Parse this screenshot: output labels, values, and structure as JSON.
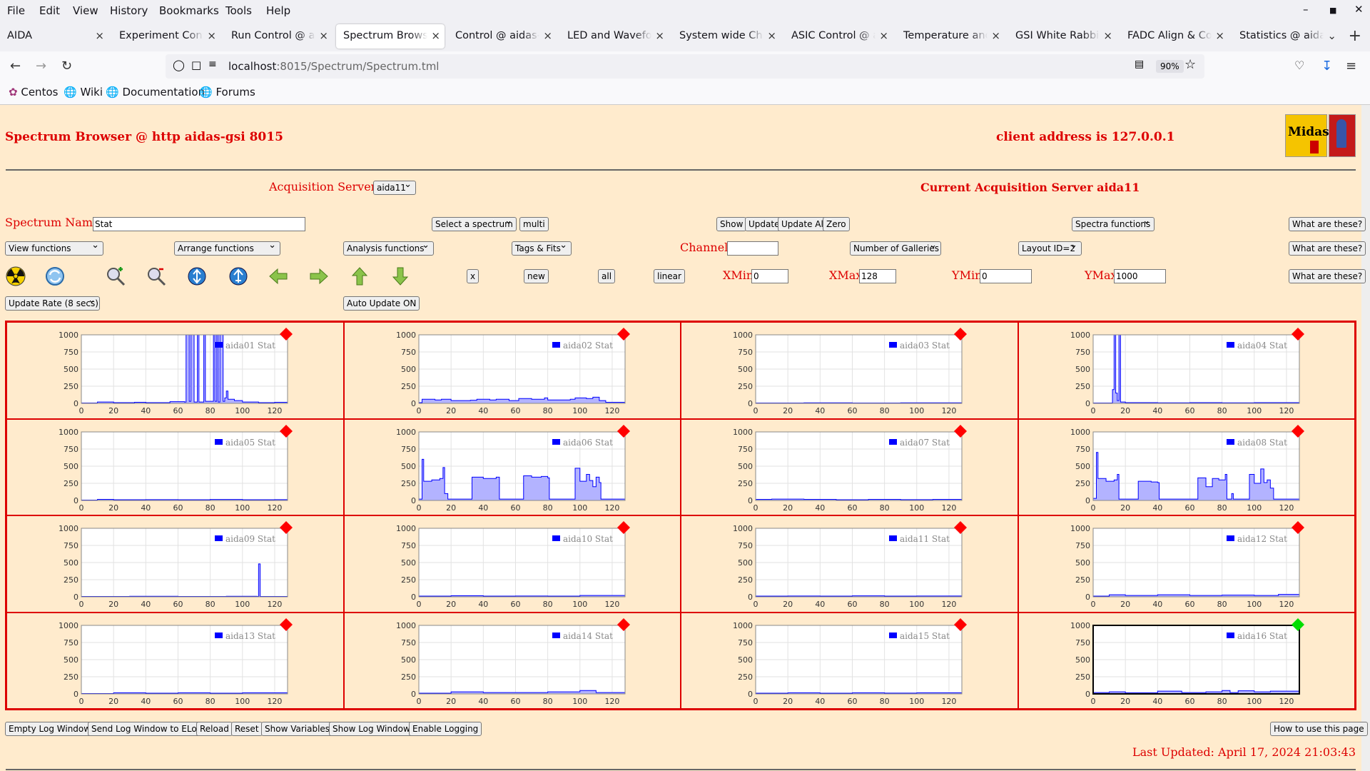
{
  "menu": [
    "File",
    "Edit",
    "View",
    "History",
    "Bookmarks",
    "Tools",
    "Help"
  ],
  "tabs": [
    {
      "label": "AIDA"
    },
    {
      "label": "Experiment Control"
    },
    {
      "label": "Run Control @ aidas"
    },
    {
      "label": "Spectrum Browser"
    },
    {
      "label": "Control @ aidas-gsi"
    },
    {
      "label": "LED and Waveform"
    },
    {
      "label": "System wide Checks"
    },
    {
      "label": "ASIC Control @ aidas"
    },
    {
      "label": "Temperature and status"
    },
    {
      "label": "GSI White Rabbit Timestamp"
    },
    {
      "label": "FADC Align & Control"
    },
    {
      "label": "Statistics @ aidas-gsi"
    }
  ],
  "url": {
    "host": "localhost",
    "rest": ":8015/Spectrum/Spectrum.tml"
  },
  "zoom": "90%",
  "bookmarks": [
    "Centos",
    "Wiki",
    "Documentation",
    "Forums"
  ],
  "page": {
    "title": "Spectrum Browser @ http aidas-gsi 8015",
    "client": "client address is 127.0.0.1",
    "logo_text": "Midas",
    "acq_label": "Acquisition Servers",
    "acq_value": "aida11",
    "current_server": "Current Acquisition Server aida11",
    "spectrum_name_label": "Spectrum Name:",
    "spectrum_name_value": "Stat",
    "select_spectrum": "Select a spectrum",
    "multi": "multi",
    "show": "Show",
    "update": "Update",
    "update_all": "Update All",
    "zero": "Zero",
    "spectra_functions": "Spectra functions",
    "what": "What are these?",
    "view_functions": "View functions",
    "arrange_functions": "Arrange functions",
    "analysis_functions": "Analysis functions",
    "tags_fits": "Tags & Fits",
    "channel_label": "Channel:",
    "galleries": "Number of Galleries",
    "layout": "Layout ID=2",
    "x_btn": "x",
    "new_btn": "new",
    "all_btn": "all",
    "linear_btn": "linear",
    "xmin_label": "XMin",
    "xmin_value": "0",
    "xmax_label": "XMax",
    "xmax_value": "128",
    "ymin_label": "YMin",
    "ymin_value": "0",
    "ymax_label": "YMax",
    "ymax_value": "1000",
    "update_rate": "Update Rate (8 secs)",
    "auto_update": "Auto Update ON",
    "bottom_buttons": [
      "Empty Log Window",
      "Send Log Window to ELog",
      "Reload",
      "Reset",
      "Show Variables",
      "Show Log Window",
      "Enable Logging"
    ],
    "how_to": "How to use this page",
    "last_updated": "Last Updated: April 17, 2024 21:03:43"
  },
  "colors": {
    "accent": "#dd0000",
    "bg": "#ffebcd",
    "line": "#0000ff",
    "fill": "#b3b3ff",
    "alarm": "#ff0000",
    "ok": "#00dd00"
  },
  "icons": [
    "radiation-icon",
    "refresh-icon",
    "zoom-in-icon",
    "zoom-out-icon",
    "arrow-up-down-blue-icon",
    "arrow-down-up-blue-icon",
    "arrow-left-icon",
    "arrow-right-icon",
    "arrow-up-icon",
    "arrow-down-icon"
  ],
  "chart_data": {
    "type": "line",
    "xlim": [
      0,
      128
    ],
    "ylim": [
      0,
      1000
    ],
    "xticks": [
      0,
      20,
      40,
      60,
      80,
      100,
      120
    ],
    "yticks": [
      0,
      250,
      500,
      750,
      1000
    ],
    "grid": true,
    "legend": "top-right",
    "panels": [
      {
        "name": "aida01 Stat",
        "status": "red",
        "points": [
          [
            0,
            5
          ],
          [
            10,
            20
          ],
          [
            20,
            10
          ],
          [
            33,
            15
          ],
          [
            40,
            10
          ],
          [
            55,
            25
          ],
          [
            64,
            20
          ],
          [
            65,
            1000
          ],
          [
            66,
            1000
          ],
          [
            67,
            30
          ],
          [
            68,
            1000
          ],
          [
            69,
            1000
          ],
          [
            70,
            20
          ],
          [
            72,
            1000
          ],
          [
            73,
            20
          ],
          [
            76,
            1000
          ],
          [
            77,
            30
          ],
          [
            82,
            1000
          ],
          [
            83,
            30
          ],
          [
            84,
            1000
          ],
          [
            85,
            20
          ],
          [
            86,
            1000
          ],
          [
            87,
            1000
          ],
          [
            88,
            30
          ],
          [
            89,
            80
          ],
          [
            90,
            180
          ],
          [
            91,
            60
          ],
          [
            95,
            40
          ],
          [
            100,
            20
          ],
          [
            110,
            10
          ],
          [
            120,
            15
          ],
          [
            128,
            5
          ]
        ]
      },
      {
        "name": "aida02 Stat",
        "status": "red",
        "points": [
          [
            0,
            10
          ],
          [
            2,
            60
          ],
          [
            10,
            50
          ],
          [
            14,
            60
          ],
          [
            20,
            40
          ],
          [
            32,
            45
          ],
          [
            36,
            60
          ],
          [
            44,
            50
          ],
          [
            48,
            60
          ],
          [
            56,
            40
          ],
          [
            62,
            70
          ],
          [
            70,
            60
          ],
          [
            78,
            80
          ],
          [
            80,
            50
          ],
          [
            94,
            60
          ],
          [
            97,
            80
          ],
          [
            104,
            70
          ],
          [
            108,
            90
          ],
          [
            112,
            40
          ],
          [
            116,
            15
          ],
          [
            128,
            5
          ]
        ]
      },
      {
        "name": "aida03 Stat",
        "status": "red",
        "points": [
          [
            0,
            5
          ],
          [
            30,
            8
          ],
          [
            60,
            5
          ],
          [
            90,
            8
          ],
          [
            128,
            5
          ]
        ]
      },
      {
        "name": "aida04 Stat",
        "status": "red",
        "points": [
          [
            0,
            5
          ],
          [
            12,
            200
          ],
          [
            13,
            1000
          ],
          [
            14,
            150
          ],
          [
            15,
            40
          ],
          [
            16,
            1000
          ],
          [
            17,
            20
          ],
          [
            20,
            10
          ],
          [
            40,
            8
          ],
          [
            60,
            10
          ],
          [
            80,
            8
          ],
          [
            100,
            10
          ],
          [
            128,
            5
          ]
        ]
      },
      {
        "name": "aida05 Stat",
        "status": "red",
        "points": [
          [
            0,
            5
          ],
          [
            10,
            15
          ],
          [
            20,
            10
          ],
          [
            40,
            12
          ],
          [
            60,
            10
          ],
          [
            80,
            14
          ],
          [
            100,
            10
          ],
          [
            120,
            12
          ],
          [
            128,
            5
          ]
        ]
      },
      {
        "name": "aida06 Stat",
        "status": "red",
        "points": [
          [
            0,
            20
          ],
          [
            2,
            600
          ],
          [
            3,
            280
          ],
          [
            8,
            300
          ],
          [
            13,
            320
          ],
          [
            15,
            480
          ],
          [
            16,
            100
          ],
          [
            18,
            20
          ],
          [
            32,
            20
          ],
          [
            33,
            340
          ],
          [
            40,
            320
          ],
          [
            48,
            340
          ],
          [
            50,
            20
          ],
          [
            64,
            20
          ],
          [
            65,
            360
          ],
          [
            70,
            340
          ],
          [
            76,
            350
          ],
          [
            80,
            330
          ],
          [
            81,
            20
          ],
          [
            96,
            20
          ],
          [
            97,
            470
          ],
          [
            100,
            280
          ],
          [
            104,
            380
          ],
          [
            106,
            290
          ],
          [
            108,
            200
          ],
          [
            110,
            340
          ],
          [
            112,
            260
          ],
          [
            113,
            20
          ],
          [
            128,
            10
          ]
        ]
      },
      {
        "name": "aida07 Stat",
        "status": "red",
        "points": [
          [
            0,
            15
          ],
          [
            10,
            20
          ],
          [
            30,
            15
          ],
          [
            50,
            10
          ],
          [
            70,
            15
          ],
          [
            90,
            12
          ],
          [
            110,
            15
          ],
          [
            128,
            5
          ]
        ]
      },
      {
        "name": "aida08 Stat",
        "status": "red",
        "points": [
          [
            0,
            30
          ],
          [
            2,
            700
          ],
          [
            3,
            320
          ],
          [
            8,
            280
          ],
          [
            13,
            300
          ],
          [
            15,
            380
          ],
          [
            16,
            20
          ],
          [
            27,
            20
          ],
          [
            28,
            280
          ],
          [
            36,
            270
          ],
          [
            40,
            260
          ],
          [
            41,
            20
          ],
          [
            64,
            20
          ],
          [
            65,
            330
          ],
          [
            70,
            200
          ],
          [
            74,
            320
          ],
          [
            78,
            300
          ],
          [
            82,
            380
          ],
          [
            83,
            20
          ],
          [
            86,
            100
          ],
          [
            87,
            20
          ],
          [
            96,
            20
          ],
          [
            97,
            380
          ],
          [
            100,
            250
          ],
          [
            104,
            460
          ],
          [
            106,
            260
          ],
          [
            108,
            300
          ],
          [
            110,
            180
          ],
          [
            112,
            20
          ],
          [
            128,
            10
          ]
        ]
      },
      {
        "name": "aida09 Stat",
        "status": "red",
        "points": [
          [
            0,
            5
          ],
          [
            30,
            8
          ],
          [
            60,
            5
          ],
          [
            90,
            8
          ],
          [
            109,
            5
          ],
          [
            110,
            480
          ],
          [
            111,
            5
          ],
          [
            128,
            5
          ]
        ]
      },
      {
        "name": "aida10 Stat",
        "status": "red",
        "points": [
          [
            0,
            10
          ],
          [
            20,
            15
          ],
          [
            40,
            10
          ],
          [
            60,
            12
          ],
          [
            80,
            10
          ],
          [
            100,
            20
          ],
          [
            128,
            8
          ]
        ]
      },
      {
        "name": "aida11 Stat",
        "status": "red",
        "points": [
          [
            0,
            10
          ],
          [
            20,
            12
          ],
          [
            40,
            10
          ],
          [
            60,
            14
          ],
          [
            80,
            10
          ],
          [
            100,
            12
          ],
          [
            128,
            8
          ]
        ]
      },
      {
        "name": "aida12 Stat",
        "status": "red",
        "points": [
          [
            0,
            10
          ],
          [
            10,
            30
          ],
          [
            20,
            20
          ],
          [
            40,
            30
          ],
          [
            60,
            20
          ],
          [
            80,
            25
          ],
          [
            100,
            20
          ],
          [
            115,
            35
          ],
          [
            128,
            10
          ]
        ]
      },
      {
        "name": "aida13 Stat",
        "status": "red",
        "points": [
          [
            0,
            5
          ],
          [
            20,
            15
          ],
          [
            40,
            10
          ],
          [
            60,
            15
          ],
          [
            80,
            10
          ],
          [
            100,
            15
          ],
          [
            128,
            5
          ]
        ]
      },
      {
        "name": "aida14 Stat",
        "status": "red",
        "points": [
          [
            0,
            10
          ],
          [
            20,
            30
          ],
          [
            40,
            20
          ],
          [
            60,
            20
          ],
          [
            80,
            30
          ],
          [
            100,
            50
          ],
          [
            110,
            20
          ],
          [
            128,
            10
          ]
        ]
      },
      {
        "name": "aida15 Stat",
        "status": "red",
        "points": [
          [
            0,
            10
          ],
          [
            20,
            15
          ],
          [
            40,
            10
          ],
          [
            60,
            15
          ],
          [
            80,
            12
          ],
          [
            100,
            15
          ],
          [
            128,
            8
          ]
        ]
      },
      {
        "name": "aida16 Stat",
        "status": "green",
        "points": [
          [
            0,
            20
          ],
          [
            10,
            30
          ],
          [
            20,
            15
          ],
          [
            40,
            40
          ],
          [
            55,
            20
          ],
          [
            70,
            30
          ],
          [
            80,
            50
          ],
          [
            85,
            20
          ],
          [
            90,
            45
          ],
          [
            100,
            30
          ],
          [
            110,
            40
          ],
          [
            128,
            10
          ]
        ]
      }
    ]
  }
}
